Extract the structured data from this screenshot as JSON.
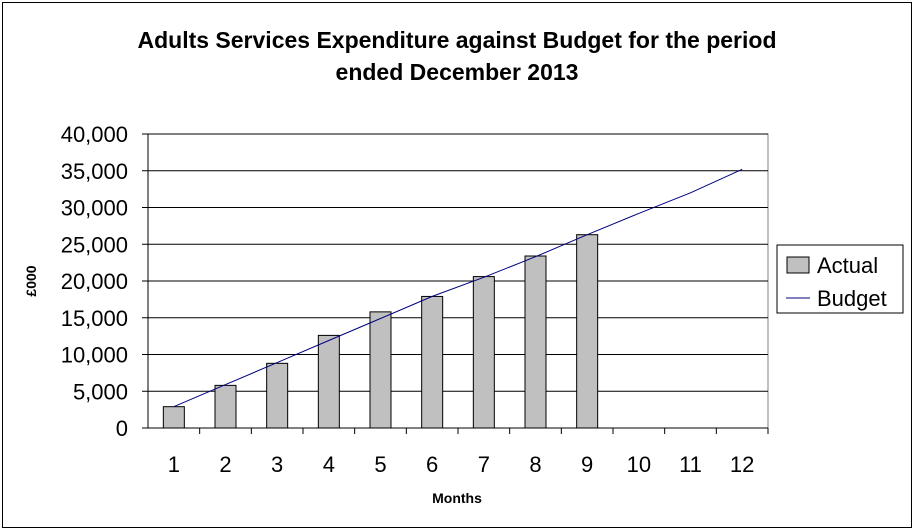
{
  "chart_data": {
    "type": "bar",
    "title_lines": [
      "Adults Services Expenditure against Budget for the period",
      "ended December 2013"
    ],
    "xlabel": "Months",
    "ylabel": "£000",
    "categories": [
      "1",
      "2",
      "3",
      "4",
      "5",
      "6",
      "7",
      "8",
      "9",
      "10",
      "11",
      "12"
    ],
    "y_ticks": [
      "0",
      "5,000",
      "10,000",
      "15,000",
      "20,000",
      "25,000",
      "30,000",
      "35,000",
      "40,000"
    ],
    "ylim": [
      0,
      40000
    ],
    "series": [
      {
        "name": "Actual",
        "kind": "bar",
        "values": [
          2900,
          5800,
          8800,
          12600,
          15800,
          17900,
          20600,
          23400,
          26300,
          null,
          null,
          null
        ]
      },
      {
        "name": "Budget",
        "kind": "line",
        "values": [
          2900,
          5900,
          8900,
          11900,
          14900,
          17900,
          20500,
          23300,
          26300,
          29200,
          32000,
          35200
        ]
      }
    ],
    "legend_position": "right",
    "grid": true,
    "colors": {
      "bar_fill": "#c0c0c0",
      "bar_stroke": "#000000",
      "line": "#000080",
      "plot_bg": "#ffffff"
    }
  }
}
